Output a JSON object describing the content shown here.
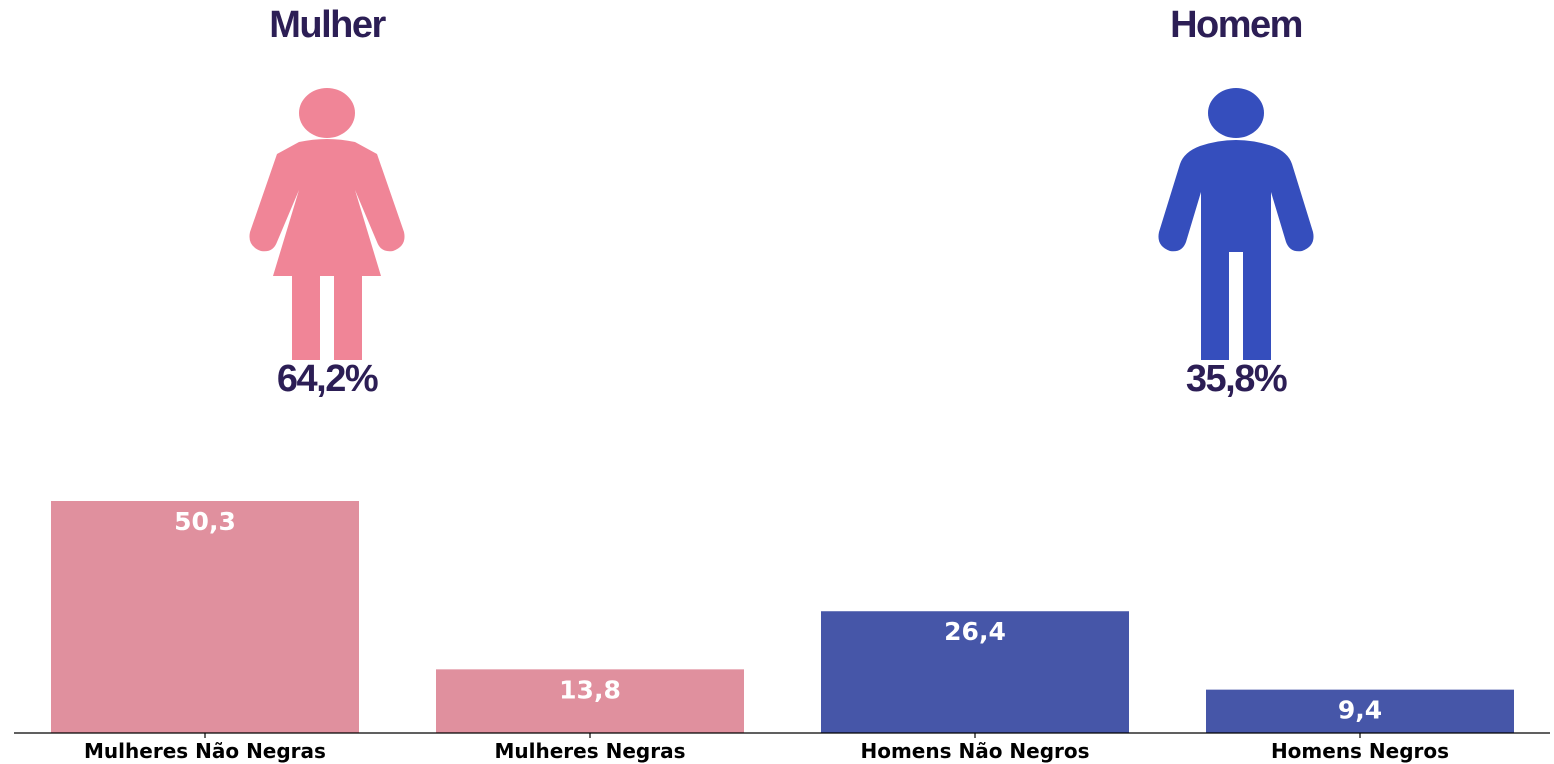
{
  "summary": {
    "female": {
      "title": "Mulher",
      "percent": "64,2%",
      "icon": "female-figure-icon",
      "color": "#f08597"
    },
    "male": {
      "title": "Homem",
      "percent": "35,8%",
      "icon": "male-figure-icon",
      "color": "#354ebd"
    }
  },
  "chart_data": {
    "type": "bar",
    "categories": [
      "Mulheres Não Negras",
      "Mulheres Negras",
      "Homens Não Negros",
      "Homens Negros"
    ],
    "values": [
      50.3,
      13.8,
      26.4,
      9.4
    ],
    "value_labels": [
      "50,3",
      "13,8",
      "26,4",
      "9,4"
    ],
    "colors": [
      "#e0909e",
      "#e0909e",
      "#4656a8",
      "#4656a8"
    ],
    "ylim": [
      0,
      50.3
    ],
    "grid": false,
    "title": "",
    "xlabel": "",
    "ylabel": ""
  }
}
